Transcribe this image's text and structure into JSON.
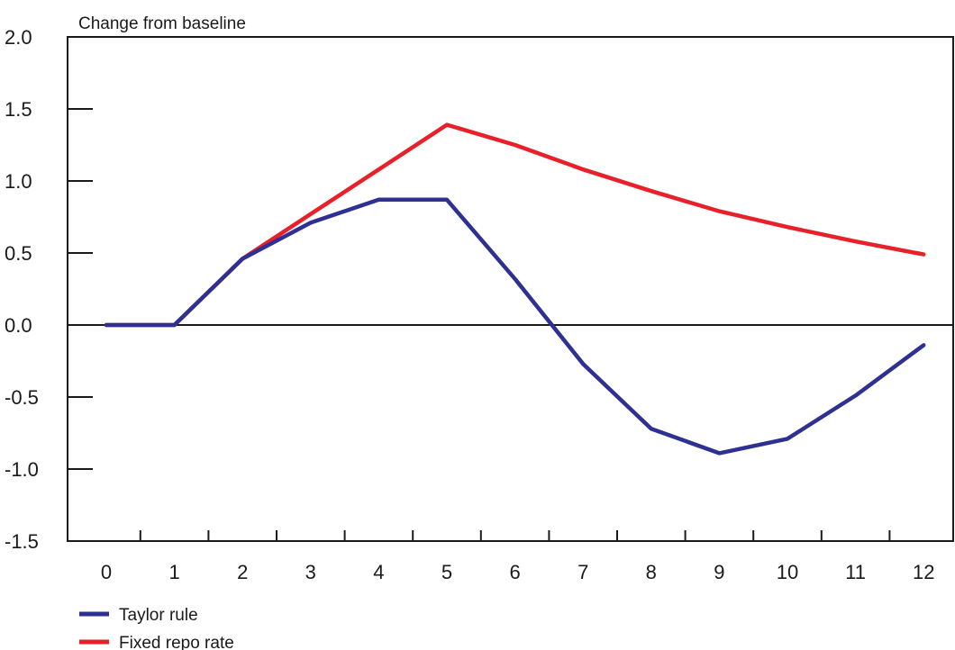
{
  "chart_data": {
    "type": "line",
    "ylabel": "Change from baseline",
    "ylim": [
      -1.5,
      2.0
    ],
    "yticks": [
      2.0,
      1.5,
      1.0,
      0.5,
      0.0,
      -0.5,
      -1.0,
      -1.5
    ],
    "ytick_labels": [
      "2.0",
      "1.5",
      "1.0",
      "0.5",
      "0.0",
      "-0.5",
      "-1.0",
      "-1.5"
    ],
    "x": [
      0,
      1,
      2,
      3,
      4,
      5,
      6,
      7,
      8,
      9,
      10,
      11,
      12
    ],
    "xtick_labels": [
      "0",
      "1",
      "2",
      "3",
      "4",
      "5",
      "6",
      "7",
      "8",
      "9",
      "10",
      "11",
      "12"
    ],
    "legend_position": "bottom-left",
    "grid": false,
    "series": [
      {
        "name": "Taylor rule",
        "color": "#2e3192",
        "values": [
          0.0,
          0.0,
          0.46,
          0.71,
          0.87,
          0.87,
          0.32,
          -0.27,
          -0.72,
          -0.89,
          -0.79,
          -0.49,
          -0.14
        ]
      },
      {
        "name": "Fixed repo rate",
        "color": "#e8202a",
        "values": [
          0.0,
          0.0,
          0.46,
          0.77,
          1.08,
          1.39,
          1.25,
          1.08,
          0.93,
          0.79,
          0.68,
          0.58,
          0.49
        ]
      }
    ]
  }
}
